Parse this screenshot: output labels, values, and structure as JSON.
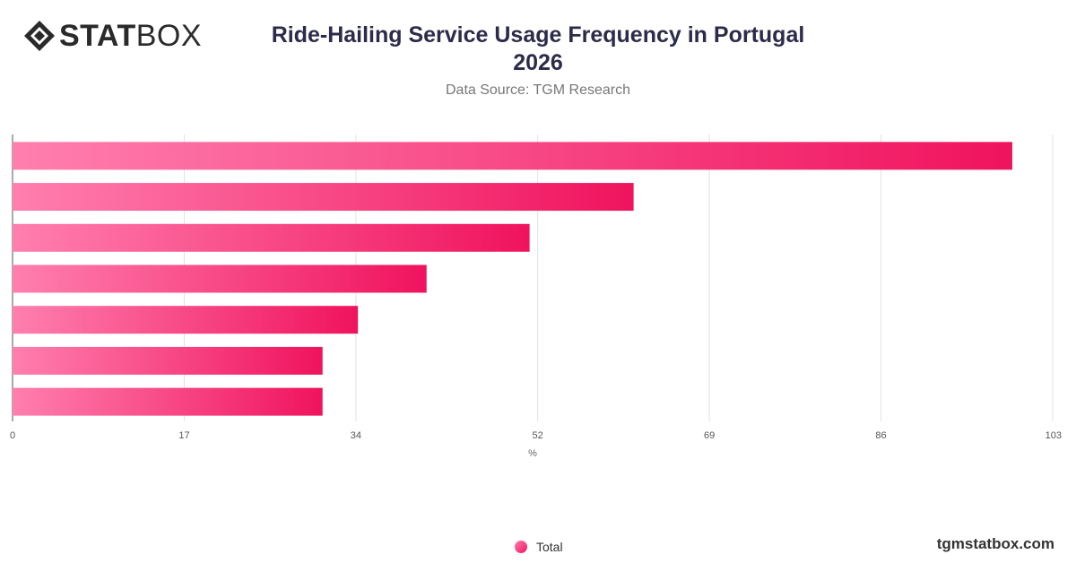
{
  "header": {
    "logo_bold": "STAT",
    "logo_light": "BOX",
    "title_line1": "Ride-Hailing Service Usage Frequency in Portugal",
    "title_line2": "2026",
    "subtitle": "Data Source: TGM Research"
  },
  "legend": {
    "label": "Total"
  },
  "footer": {
    "brand": "tgmstatbox.com"
  },
  "chart_data": {
    "type": "bar",
    "orientation": "horizontal",
    "title": "Ride-Hailing Service Usage Frequency in Portugal 2026",
    "xlabel": "%",
    "ylabel": "",
    "xlim": [
      0,
      103
    ],
    "ticks": [
      0,
      17,
      34,
      52,
      69,
      86,
      103
    ],
    "categories": [
      "",
      "",
      "",
      "",
      "",
      "",
      ""
    ],
    "series": [
      {
        "name": "Total",
        "values": [
          99,
          61.5,
          51.2,
          41,
          34.2,
          30.7,
          30.7
        ]
      }
    ],
    "grid": true,
    "legend_position": "bottom-center",
    "colors": {
      "bar_start": "#ff7fae",
      "bar_end": "#f0135e"
    }
  }
}
